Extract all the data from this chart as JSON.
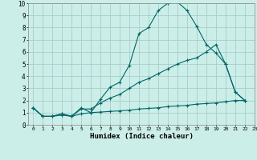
{
  "xlabel": "Humidex (Indice chaleur)",
  "bg_color": "#cceee8",
  "grid_color": "#aacccc",
  "line_color": "#006666",
  "xlim": [
    -0.5,
    23
  ],
  "ylim": [
    0,
    10
  ],
  "xticks": [
    0,
    1,
    2,
    3,
    4,
    5,
    6,
    7,
    8,
    9,
    10,
    11,
    12,
    13,
    14,
    15,
    16,
    17,
    18,
    19,
    20,
    21,
    22,
    23
  ],
  "yticks": [
    0,
    1,
    2,
    3,
    4,
    5,
    6,
    7,
    8,
    9,
    10
  ],
  "line1_x": [
    0,
    1,
    2,
    3,
    4,
    5,
    6,
    7,
    8,
    9,
    10,
    11,
    12,
    13,
    14,
    15,
    16,
    17,
    18,
    19,
    20,
    21,
    22
  ],
  "line1_y": [
    1.4,
    0.7,
    0.7,
    0.9,
    0.7,
    1.4,
    1.0,
    2.1,
    3.1,
    3.5,
    4.9,
    7.5,
    8.0,
    9.4,
    10.0,
    10.1,
    9.4,
    8.1,
    6.6,
    5.9,
    5.0,
    2.7,
    2.0
  ],
  "line2_x": [
    0,
    1,
    2,
    3,
    4,
    5,
    6,
    7,
    8,
    9,
    10,
    11,
    12,
    13,
    14,
    15,
    16,
    17,
    18,
    19,
    20,
    21,
    22
  ],
  "line2_y": [
    1.4,
    0.7,
    0.7,
    0.9,
    0.7,
    1.3,
    1.3,
    1.8,
    2.2,
    2.5,
    3.0,
    3.5,
    3.8,
    4.2,
    4.6,
    5.0,
    5.3,
    5.5,
    6.0,
    6.6,
    5.0,
    2.7,
    2.0
  ],
  "line3_x": [
    0,
    1,
    2,
    3,
    4,
    5,
    6,
    7,
    8,
    9,
    10,
    11,
    12,
    13,
    14,
    15,
    16,
    17,
    18,
    19,
    20,
    21,
    22
  ],
  "line3_y": [
    1.4,
    0.7,
    0.7,
    0.8,
    0.7,
    0.9,
    1.0,
    1.05,
    1.1,
    1.15,
    1.2,
    1.3,
    1.35,
    1.4,
    1.5,
    1.55,
    1.6,
    1.7,
    1.75,
    1.8,
    1.9,
    2.0,
    2.0
  ]
}
